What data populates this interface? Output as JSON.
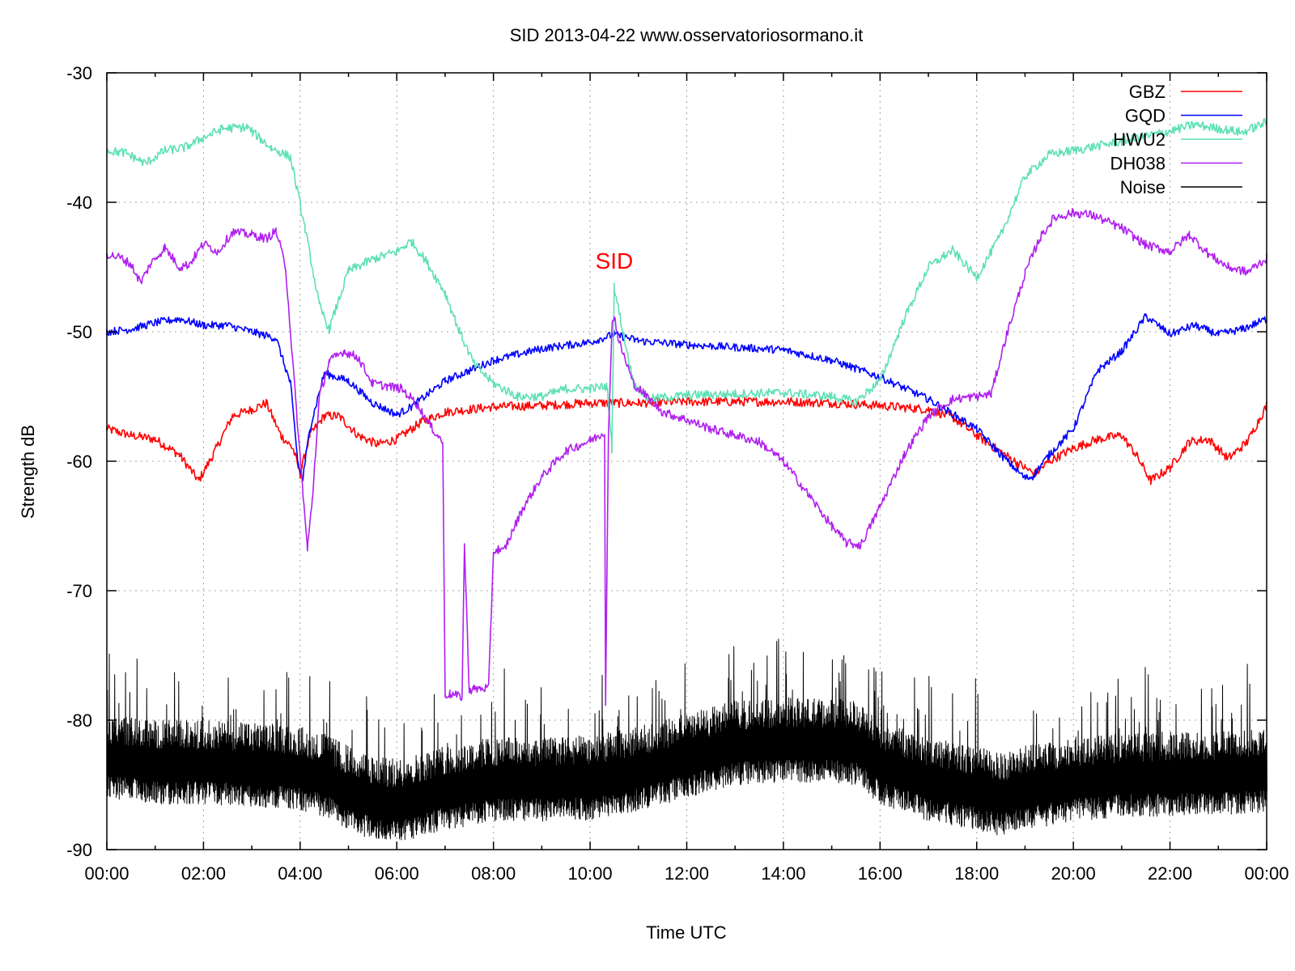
{
  "chart_data": {
    "type": "line",
    "title": "SID 2013-04-22 www.osservatoriosormano.it",
    "xlabel": "Time UTC",
    "ylabel": "Strength dB",
    "x_unit": "hour",
    "xlim": [
      0,
      24
    ],
    "ylim": [
      -90,
      -30
    ],
    "x_ticks": [
      0,
      2,
      4,
      6,
      8,
      10,
      12,
      14,
      16,
      18,
      20,
      22,
      24
    ],
    "x_tick_labels": [
      "00:00",
      "02:00",
      "04:00",
      "06:00",
      "08:00",
      "10:00",
      "12:00",
      "14:00",
      "16:00",
      "18:00",
      "20:00",
      "22:00",
      "00:00"
    ],
    "y_ticks": [
      -90,
      -80,
      -70,
      -60,
      -50,
      -40,
      -30
    ],
    "y_tick_labels": [
      "-90",
      "-80",
      "-70",
      "-60",
      "-50",
      "-40",
      "-30"
    ],
    "grid": true,
    "legend_position": "top-right",
    "annotations": [
      {
        "text": "SID",
        "x": 10.5,
        "y": -44.5,
        "color": "#ff0000"
      }
    ],
    "series": [
      {
        "name": "GBZ",
        "color": "#ff0000",
        "x": [
          0,
          0.5,
          1,
          1.5,
          1.9,
          2.2,
          2.6,
          3,
          3.3,
          3.6,
          3.85,
          4.0,
          4.2,
          4.5,
          4.8,
          5.2,
          5.6,
          6.0,
          6.5,
          7,
          8,
          9,
          10,
          11,
          12,
          13,
          14,
          15,
          16,
          17,
          17.5,
          18,
          18.5,
          19,
          19.2,
          19.5,
          20,
          20.5,
          21,
          21.3,
          21.6,
          22,
          22.4,
          22.8,
          23.2,
          23.6,
          24
        ],
        "y": [
          -57.5,
          -58,
          -58.3,
          -59.5,
          -61.5,
          -59.5,
          -56.5,
          -56,
          -55.5,
          -58,
          -59,
          -61,
          -58,
          -56.5,
          -56.5,
          -58,
          -58.7,
          -58.3,
          -57,
          -56.2,
          -55.8,
          -55.7,
          -55.5,
          -55.5,
          -55.4,
          -55.4,
          -55.4,
          -55.5,
          -55.7,
          -56,
          -56.6,
          -58,
          -59.3,
          -60.5,
          -61,
          -60,
          -59,
          -58.3,
          -58,
          -59.5,
          -61.5,
          -60.5,
          -58.5,
          -58.3,
          -59.8,
          -58.5,
          -55.7
        ]
      },
      {
        "name": "GQD",
        "color": "#0000ff",
        "x": [
          0,
          0.5,
          1,
          1.5,
          2,
          2.5,
          3,
          3.5,
          3.8,
          3.95,
          4.05,
          4.2,
          4.5,
          5,
          5.5,
          6,
          6.3,
          7,
          8,
          9,
          10,
          10.5,
          11,
          12,
          13,
          14,
          15,
          16,
          17,
          18,
          18.5,
          19,
          19.15,
          19.5,
          20,
          20.5,
          21,
          21.5,
          22,
          22.5,
          23,
          23.5,
          24
        ],
        "y": [
          -50,
          -49.8,
          -49.3,
          -49,
          -49.5,
          -49.5,
          -50,
          -50.5,
          -54,
          -60,
          -61.5,
          -57.5,
          -53.2,
          -53.8,
          -55.5,
          -56.4,
          -55.8,
          -53.8,
          -52.2,
          -51.3,
          -50.8,
          -50.2,
          -50.7,
          -51,
          -51.2,
          -51.4,
          -52.2,
          -53.5,
          -55.2,
          -57.5,
          -59.5,
          -61.3,
          -61.2,
          -59.5,
          -57.5,
          -53,
          -51.5,
          -48.8,
          -50.2,
          -49.5,
          -50.2,
          -49.8,
          -49
        ]
      },
      {
        "name": "HWU2",
        "color": "#5ee0b4",
        "x": [
          0,
          0.4,
          0.8,
          1.2,
          1.6,
          2,
          2.4,
          2.9,
          3.4,
          3.8,
          4.1,
          4.4,
          4.6,
          5,
          5.5,
          6,
          6.3,
          6.6,
          7,
          7.3,
          7.6,
          8,
          8.5,
          9,
          9.5,
          10,
          10.35,
          10.45,
          10.5,
          10.6,
          10.9,
          11.2,
          12,
          13,
          14,
          15,
          15.5,
          16,
          16.5,
          17,
          17.5,
          18,
          18.5,
          19,
          19.5,
          20,
          21,
          22,
          22.5,
          23,
          23.5,
          24
        ],
        "y": [
          -36,
          -36.2,
          -37,
          -36,
          -35.8,
          -35,
          -34.3,
          -34.2,
          -35.8,
          -36.5,
          -42,
          -48,
          -49.8,
          -45.3,
          -44.4,
          -43.8,
          -43,
          -44.5,
          -47,
          -50,
          -52.5,
          -54,
          -55,
          -55,
          -54.4,
          -54.4,
          -54.2,
          -59,
          -46.5,
          -48.5,
          -54,
          -55.2,
          -54.9,
          -54.8,
          -54.7,
          -55,
          -55.4,
          -53.8,
          -49,
          -45,
          -43.7,
          -45.8,
          -42.5,
          -38,
          -36.3,
          -36,
          -35.3,
          -34.5,
          -34,
          -34.3,
          -34.6,
          -33.8
        ]
      },
      {
        "name": "DH038",
        "color": "#b020ee",
        "x": [
          0,
          0.3,
          0.5,
          0.7,
          0.9,
          1.2,
          1.5,
          1.7,
          2,
          2.3,
          2.6,
          3,
          3.3,
          3.5,
          3.7,
          3.9,
          4.05,
          4.15,
          4.25,
          4.4,
          4.6,
          4.9,
          5.2,
          5.5,
          5.8,
          6.1,
          6.4,
          6.7,
          6.95,
          7.0,
          7.1,
          7.35,
          7.4,
          7.5,
          7.6,
          7.9,
          8.0,
          8.1,
          8.2,
          8.3,
          8.6,
          9,
          9.5,
          10,
          10.2,
          10.3,
          10.32,
          10.38,
          10.45,
          10.5,
          10.6,
          10.9,
          11.5,
          12,
          12.5,
          13,
          13.5,
          14,
          14.5,
          15,
          15.3,
          15.6,
          16,
          16.5,
          17,
          17.5,
          18,
          18.3,
          18.6,
          19,
          19.3,
          19.6,
          20,
          20.4,
          21,
          21.5,
          22,
          22.4,
          22.8,
          23.2,
          23.6,
          24
        ],
        "y": [
          -44,
          -44.3,
          -44.8,
          -46.2,
          -44.8,
          -43.5,
          -45,
          -44.8,
          -43.2,
          -43.8,
          -42.3,
          -42.5,
          -42.8,
          -42.2,
          -45,
          -55,
          -62,
          -66.8,
          -63,
          -55,
          -52.3,
          -51.5,
          -52,
          -54,
          -54.2,
          -54.4,
          -55.5,
          -57.3,
          -58.5,
          -78,
          -78,
          -78.2,
          -66.5,
          -77.7,
          -77.6,
          -77.5,
          -67,
          -66.8,
          -67,
          -66.2,
          -63.7,
          -61.2,
          -59.2,
          -58.4,
          -58,
          -57.8,
          -78.5,
          -58,
          -49.5,
          -48.8,
          -50.8,
          -54,
          -56.2,
          -56.8,
          -57.5,
          -58,
          -58.5,
          -60,
          -62.5,
          -65,
          -66.3,
          -66.5,
          -63.5,
          -59.5,
          -56.5,
          -55.2,
          -55,
          -54.8,
          -50.5,
          -45.5,
          -42.8,
          -41.2,
          -40.8,
          -41,
          -42,
          -43.3,
          -43.8,
          -42.5,
          -44,
          -45,
          -45.4,
          -44.3
        ]
      },
      {
        "name": "Noise",
        "color": "#000000",
        "x": [
          0,
          1,
          2,
          3,
          3.5,
          4,
          4.5,
          5,
          5.5,
          6,
          6.5,
          7,
          8,
          9,
          10,
          11,
          12,
          13,
          14,
          15,
          15.5,
          16,
          17,
          18,
          18.5,
          19,
          20,
          21,
          22,
          23,
          24
        ],
        "y": [
          -83,
          -83.5,
          -83.5,
          -83.7,
          -83.8,
          -84,
          -84.5,
          -85.5,
          -86.3,
          -86.5,
          -86,
          -85.5,
          -84.8,
          -84.8,
          -84.7,
          -84,
          -83,
          -82,
          -81.8,
          -81.8,
          -82,
          -83.5,
          -84.8,
          -85.5,
          -86,
          -85.5,
          -84.8,
          -84.5,
          -84.4,
          -84.3,
          -84.2
        ]
      }
    ]
  }
}
